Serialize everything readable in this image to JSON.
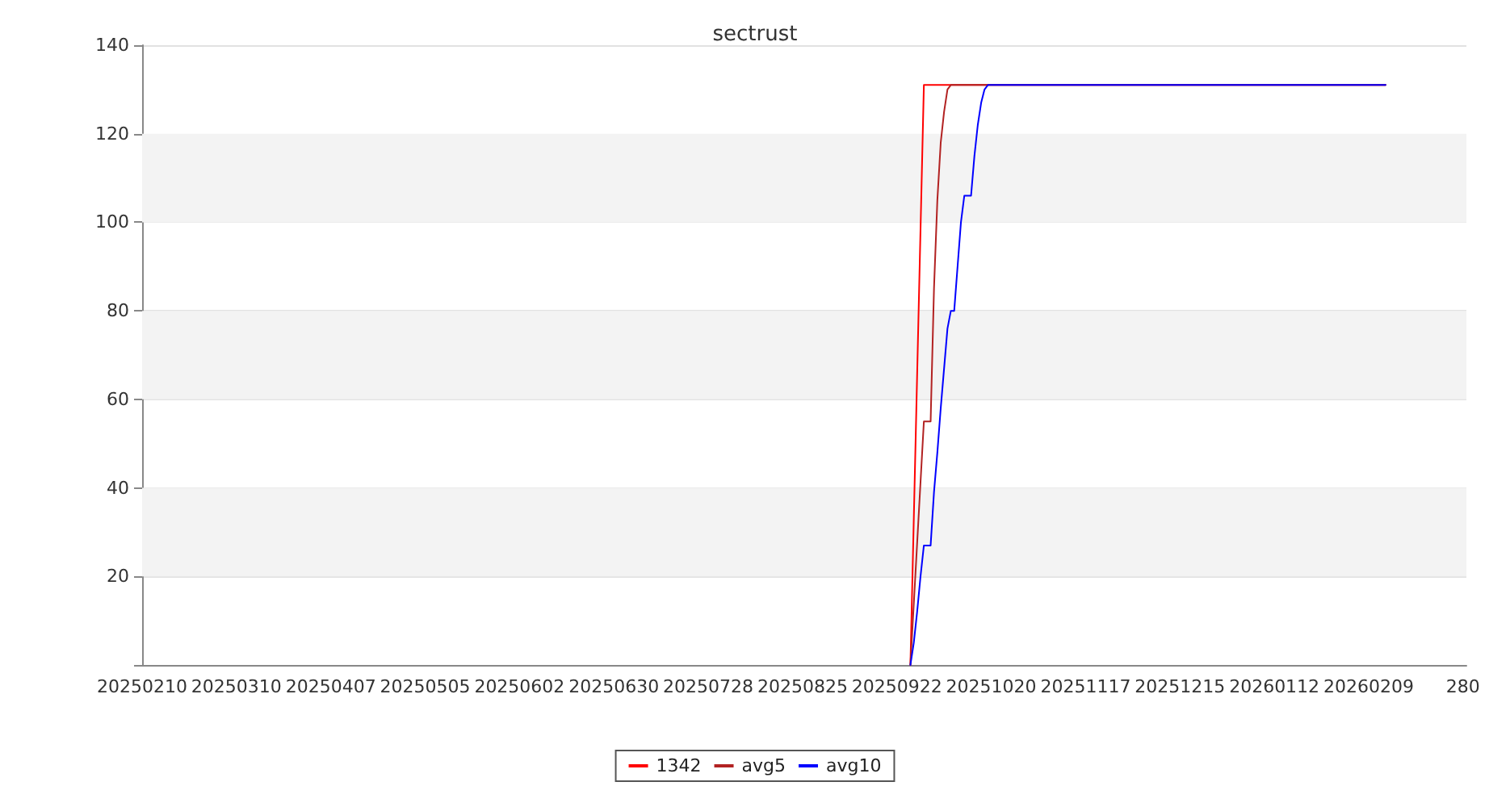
{
  "chart_data": {
    "type": "line",
    "title": "sectrust",
    "xlim": [
      "2025-02-10",
      "2026-03-10"
    ],
    "xticks": [
      {
        "value": "2025-02-10",
        "label": "20250210"
      },
      {
        "value": "2025-03-10",
        "label": "20250310"
      },
      {
        "value": "2025-04-07",
        "label": "20250407"
      },
      {
        "value": "2025-05-05",
        "label": "20250505"
      },
      {
        "value": "2025-06-02",
        "label": "20250602"
      },
      {
        "value": "2025-06-30",
        "label": "20250630"
      },
      {
        "value": "2025-07-28",
        "label": "20250728"
      },
      {
        "value": "2025-08-25",
        "label": "20250825"
      },
      {
        "value": "2025-09-22",
        "label": "20250922"
      },
      {
        "value": "2025-10-20",
        "label": "20251020"
      },
      {
        "value": "2025-11-17",
        "label": "20251117"
      },
      {
        "value": "2025-12-15",
        "label": "20251215"
      },
      {
        "value": "2026-01-12",
        "label": "20260112"
      },
      {
        "value": "2026-02-09",
        "label": "20260209"
      },
      {
        "value": "2026-03-09",
        "label": "280"
      }
    ],
    "ylim": [
      0,
      140
    ],
    "yticks": [
      {
        "value": 0,
        "label": null
      },
      20,
      40,
      60,
      80,
      100,
      120,
      140
    ],
    "bands": [
      {
        "axis": "y",
        "from": 20,
        "to": 40,
        "color": "#f3f3f3"
      },
      {
        "axis": "y",
        "from": 60,
        "to": 80,
        "color": "#f3f3f3"
      },
      {
        "axis": "y",
        "from": 100,
        "to": 120,
        "color": "#f3f3f3"
      }
    ],
    "grid": "y",
    "legend": "bottom",
    "marker": "none",
    "line_style": "solid",
    "series": [
      {
        "name": "1342",
        "color": "#ff0000",
        "x": [
          "2025-09-26",
          "2025-09-30",
          "2026-02-14"
        ],
        "values": [
          0,
          131,
          131
        ]
      },
      {
        "name": "avg5",
        "color": "#b22222",
        "x": [
          "2025-09-26",
          "2025-09-30",
          "2025-10-02",
          "2025-10-03",
          "2025-10-04",
          "2025-10-05",
          "2025-10-06",
          "2025-10-07",
          "2025-10-08",
          "2026-02-14"
        ],
        "values": [
          0,
          55,
          55,
          85,
          105,
          118,
          125,
          130,
          131,
          131
        ]
      },
      {
        "name": "avg10",
        "color": "#0000ff",
        "x": [
          "2025-09-26",
          "2025-09-27",
          "2025-09-28",
          "2025-09-29",
          "2025-09-30",
          "2025-10-02",
          "2025-10-03",
          "2025-10-04",
          "2025-10-05",
          "2025-10-06",
          "2025-10-07",
          "2025-10-08",
          "2025-10-09",
          "2025-10-10",
          "2025-10-11",
          "2025-10-12",
          "2025-10-14",
          "2025-10-15",
          "2025-10-16",
          "2025-10-17",
          "2025-10-18",
          "2025-10-19",
          "2026-02-14"
        ],
        "values": [
          0,
          5,
          12,
          20,
          27,
          27,
          39,
          48,
          58,
          67,
          76,
          80,
          80,
          90,
          100,
          106,
          106,
          115,
          122,
          127,
          130,
          131,
          131
        ]
      }
    ]
  }
}
